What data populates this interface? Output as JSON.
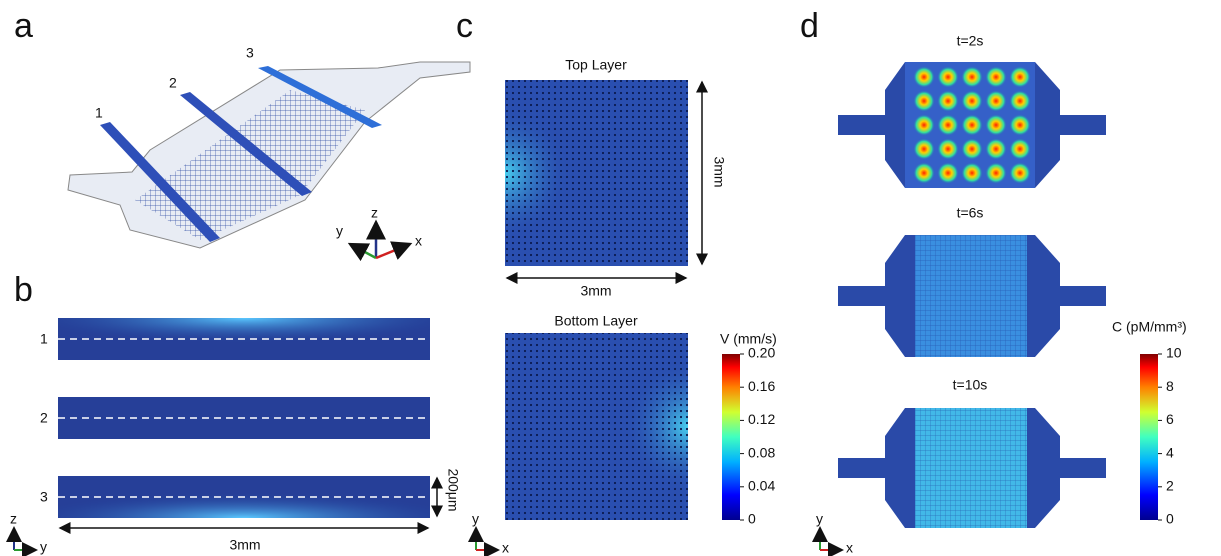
{
  "panels": {
    "a": {
      "label": "a",
      "channels": [
        "1",
        "2",
        "3"
      ],
      "axes": {
        "z": "z",
        "y": "y",
        "x": "x"
      }
    },
    "b": {
      "label": "b",
      "channels": [
        "1",
        "2",
        "3"
      ],
      "height": "200μm",
      "width": "3mm",
      "axes": {
        "z": "z",
        "y": "y"
      }
    },
    "c": {
      "label": "c",
      "top_title": "Top Layer",
      "bottom_title": "Bottom Layer",
      "side": "3mm",
      "width": "3mm",
      "colorbar": {
        "title": "V (mm/s)",
        "lim": [
          0,
          0.2
        ],
        "ticks": [
          {
            "value": 0.2,
            "label": "0.20"
          },
          0.16,
          0.12,
          0.08,
          0.04,
          0
        ]
      },
      "axes": {
        "y": "y",
        "x": "x"
      }
    },
    "d": {
      "label": "d",
      "times": [
        "t=2s",
        "t=6s",
        "t=10s"
      ],
      "colorbar": {
        "title": "C (pM/mm³)",
        "lim": [
          0,
          10
        ],
        "ticks": [
          10,
          8,
          6,
          4,
          2,
          0
        ]
      },
      "axes": {
        "y": "y",
        "x": "x"
      }
    }
  }
}
